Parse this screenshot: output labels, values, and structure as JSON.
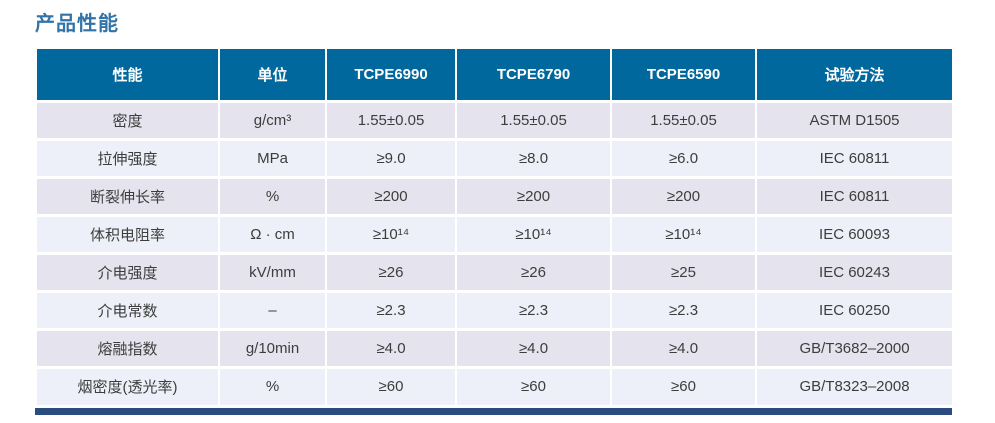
{
  "page": {
    "title": "产品性能"
  },
  "colors": {
    "header_bg": "#00689c",
    "header_text": "#ffffff",
    "row_odd_bg": "#e5e4ee",
    "row_even_bg": "#edf0f8",
    "cell_text": "#3d3d3d",
    "bottom_bar": "#2b4c7e",
    "title_text": "#3274a8"
  },
  "table": {
    "columns": [
      "性能",
      "单位",
      "TCPE6990",
      "TCPE6790",
      "TCPE6590",
      "试验方法"
    ],
    "rows": [
      [
        "密度",
        "g/cm³",
        "1.55±0.05",
        "1.55±0.05",
        "1.55±0.05",
        "ASTM D1505"
      ],
      [
        "拉伸强度",
        "MPa",
        "≥9.0",
        "≥8.0",
        "≥6.0",
        "IEC 60811"
      ],
      [
        "断裂伸长率",
        "%",
        "≥200",
        "≥200",
        "≥200",
        "IEC 60811"
      ],
      [
        "体积电阻率",
        "Ω · cm",
        "≥10¹⁴",
        "≥10¹⁴",
        "≥10¹⁴",
        "IEC 60093"
      ],
      [
        "介电强度",
        "kV/mm",
        "≥26",
        "≥26",
        "≥25",
        "IEC 60243"
      ],
      [
        "介电常数",
        "–",
        "≥2.3",
        "≥2.3",
        "≥2.3",
        "IEC 60250"
      ],
      [
        "熔融指数",
        "g/10min",
        "≥4.0",
        "≥4.0",
        "≥4.0",
        "GB/T3682–2000"
      ],
      [
        "烟密度(透光率)",
        "%",
        "≥60",
        "≥60",
        "≥60",
        "GB/T8323–2008"
      ]
    ]
  }
}
